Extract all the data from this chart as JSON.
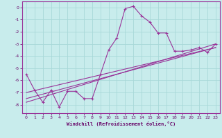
{
  "xlabel": "Windchill (Refroidissement éolien,°C)",
  "background_color": "#c8ecec",
  "grid_color": "#a8d8d8",
  "line_color": "#993399",
  "xlim": [
    -0.5,
    23.5
  ],
  "ylim": [
    -8.7,
    0.5
  ],
  "yticks": [
    0,
    -1,
    -2,
    -3,
    -4,
    -5,
    -6,
    -7,
    -8
  ],
  "xticks": [
    0,
    1,
    2,
    3,
    4,
    5,
    6,
    7,
    8,
    9,
    10,
    11,
    12,
    13,
    14,
    15,
    16,
    17,
    18,
    19,
    20,
    21,
    22,
    23
  ],
  "series1_x": [
    0,
    1,
    2,
    3,
    4,
    5,
    6,
    7,
    8,
    9,
    10,
    11,
    12,
    13,
    14,
    15,
    16,
    17,
    18,
    19,
    20,
    21,
    22,
    23
  ],
  "series1_y": [
    -5.5,
    -6.8,
    -7.8,
    -6.8,
    -8.2,
    -6.9,
    -6.9,
    -7.5,
    -7.5,
    -5.5,
    -3.5,
    -2.5,
    -0.1,
    0.1,
    -0.7,
    -1.2,
    -2.1,
    -2.1,
    -3.6,
    -3.6,
    -3.5,
    -3.3,
    -3.7,
    -3.0
  ],
  "series3_x": [
    0,
    23
  ],
  "series3_y": [
    -7.5,
    -3.3
  ],
  "series4_x": [
    0,
    23
  ],
  "series4_y": [
    -7.0,
    -3.3
  ],
  "series5_x": [
    0,
    23
  ],
  "series5_y": [
    -7.8,
    -3.0
  ]
}
